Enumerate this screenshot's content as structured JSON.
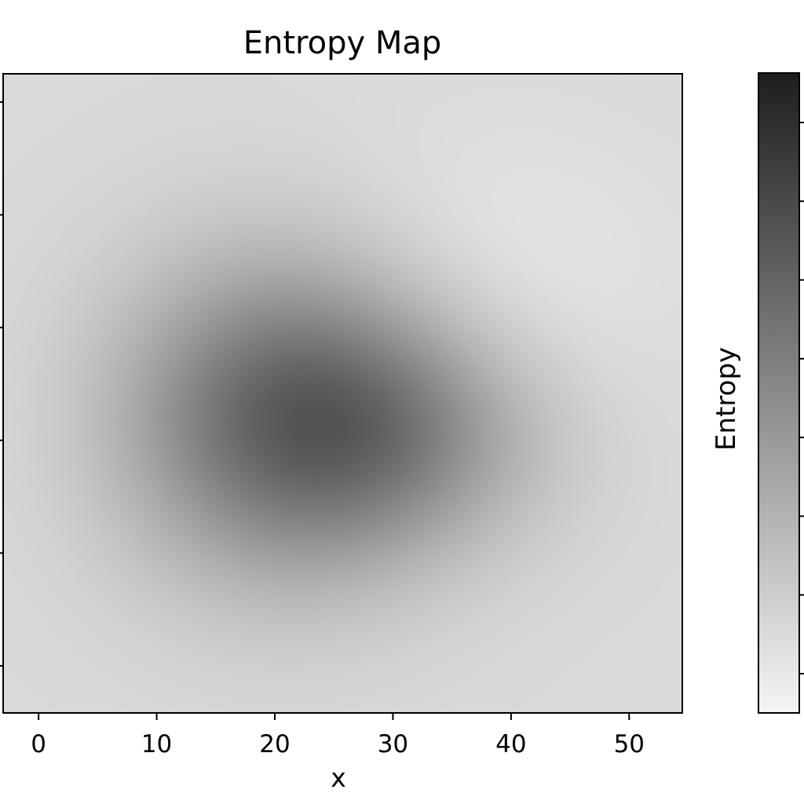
{
  "chart_data": {
    "type": "heatmap",
    "title": "Entropy Map",
    "xlabel": "x",
    "ylabel": "",
    "xlim": [
      -3,
      54.5
    ],
    "ylim": [
      0,
      54
    ],
    "x_ticks": [
      0,
      10,
      20,
      30,
      40,
      50
    ],
    "x_tick_labels": [
      "0",
      "10",
      "20",
      "30",
      "40",
      "50"
    ],
    "y_tick_count": 6,
    "colorbar": {
      "label": "Entropy",
      "colormap": "greys",
      "low_color": "#f5f5f5",
      "high_color": "#1e1e1e",
      "tick_count": 8
    },
    "grid": false,
    "background_level": 0.13,
    "blobs": [
      {
        "x": 20.5,
        "y": 25,
        "sx": 9.5,
        "sy": 9.5,
        "amplitude": 0.52
      },
      {
        "x": 30,
        "y": 24,
        "sx": 7.5,
        "sy": 7,
        "amplitude": 0.18
      },
      {
        "x": 37,
        "y": 23,
        "sx": 8,
        "sy": 6.5,
        "amplitude": 0.08
      }
    ],
    "light_region": {
      "x": 38,
      "y": 37,
      "sx": 12,
      "sy": 9,
      "amplitude": -0.06
    }
  }
}
